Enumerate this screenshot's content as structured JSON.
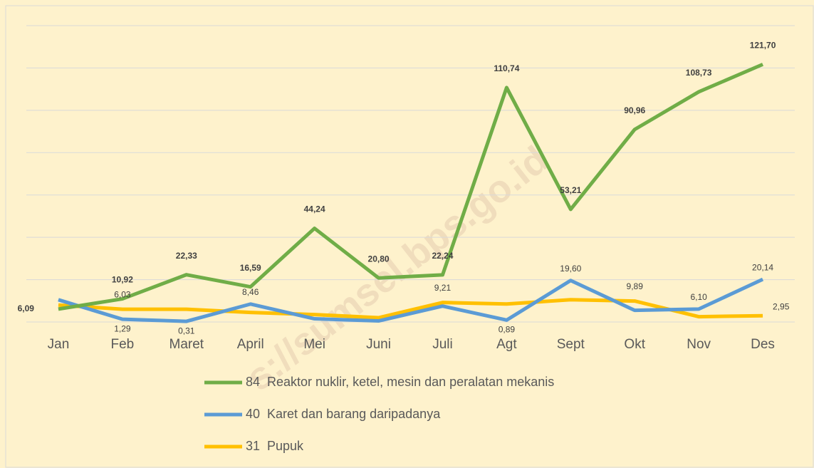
{
  "chart_data": {
    "type": "line",
    "categories": [
      "Jan",
      "Feb",
      "Maret",
      "April",
      "Mei",
      "Juni",
      "Juli",
      "Agt",
      "Sept",
      "Okt",
      "Nov",
      "Des"
    ],
    "ylim": [
      0,
      140
    ],
    "yticks": [
      0,
      20,
      40,
      60,
      80,
      100,
      120,
      140
    ],
    "grid": true,
    "series": [
      {
        "name": "84  Reaktor nuklir, ketel, mesin dan peralatan mekanis",
        "color": "#70ad47",
        "values": [
          6.09,
          10.92,
          22.33,
          16.59,
          44.24,
          20.8,
          22.24,
          110.74,
          53.21,
          90.96,
          108.73,
          121.7
        ],
        "value_labels": [
          "6,09",
          "10,92",
          "22,33",
          "16,59",
          "44,24",
          "20,80",
          "22,24",
          "110,74",
          "53,21",
          "90,96",
          "108,73",
          "121,70"
        ]
      },
      {
        "name": "40  Karet dan barang daripadanya",
        "color": "#5b9bd5",
        "values": [
          10.5,
          1.29,
          0.31,
          8.46,
          1.5,
          0.5,
          7.5,
          0.89,
          19.6,
          5.5,
          6.1,
          20.14
        ],
        "value_labels": [
          null,
          "1,29",
          "0,31",
          "8,46",
          null,
          null,
          null,
          "0,89",
          "19,60",
          null,
          "6,10",
          "20,14"
        ]
      },
      {
        "name": "31  Pupuk",
        "color": "#ffc000",
        "values": [
          8,
          6.03,
          6.0,
          4.5,
          3.5,
          2,
          9.21,
          8.5,
          10.5,
          9.89,
          2.5,
          2.95
        ],
        "value_labels": [
          null,
          "6,03",
          null,
          null,
          null,
          null,
          "9,21",
          null,
          null,
          "9,89",
          null,
          "2,95"
        ]
      }
    ],
    "watermark": "s://sumsel.bps.go.id"
  }
}
